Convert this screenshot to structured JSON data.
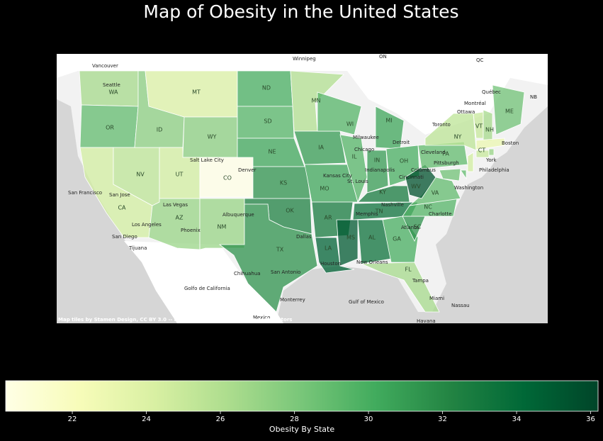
{
  "chart_data": {
    "type": "choropleth",
    "title": "Map of Obesity in the United States",
    "colorbar_label": "Obesity By State",
    "colormap": "YlGn",
    "clim": [
      20.2,
      36.2
    ],
    "cticks": [
      22,
      24,
      26,
      28,
      30,
      32,
      34,
      36
    ],
    "regions": [
      "WA",
      "OR",
      "CA",
      "NV",
      "ID",
      "MT",
      "WY",
      "UT",
      "CO",
      "AZ",
      "NM",
      "ND",
      "SD",
      "NE",
      "KS",
      "OK",
      "TX",
      "MN",
      "IA",
      "MO",
      "AR",
      "LA",
      "WI",
      "IL",
      "MI",
      "IN",
      "OH",
      "KY",
      "TN",
      "MS",
      "AL",
      "GA",
      "FL",
      "SC",
      "NC",
      "VA",
      "WV",
      "PA",
      "NY",
      "VT",
      "NH",
      "ME",
      "CT",
      null,
      null,
      null,
      null,
      null
    ],
    "values": [
      26.5,
      29,
      24.5,
      25.5,
      27.5,
      24,
      27.5,
      24.5,
      20.2,
      27,
      27,
      30,
      29.5,
      30.5,
      31.5,
      32.5,
      31.5,
      26,
      31,
      30.5,
      33,
      34.5,
      29.5,
      29.5,
      30.5,
      31,
      30,
      33,
      33.5,
      35,
      33.5,
      30,
      26.5,
      31.5,
      29.5,
      29,
      35.5,
      29,
      25.5,
      25,
      26.5,
      28.5,
      25,
      23,
      27,
      24.5,
      29,
      28.5
    ],
    "places": [
      "Vancouver",
      "Winnipeg",
      "ON",
      "QC",
      "Québec",
      "Montréal",
      "Ottawa",
      "Toronto",
      "NB",
      "Seattle",
      "Salt Lake City",
      "Denver",
      "San Francisco",
      "San Jose",
      "Los Angeles",
      "Las Vegas",
      "Phoenix",
      "San Diego",
      "Tijuana",
      "Albuquerque",
      "Dallas",
      "San Antonio",
      "Houston",
      "Chihuahua",
      "Monterrey",
      "Mexico",
      "Golfo de California",
      "Gulf of Mexico",
      "Chicago",
      "Milwaukee",
      "Detroit",
      "Cleveland",
      "Indianapolis",
      "Columbus",
      "Cincinnati",
      "Pittsburgh",
      "Kansas City",
      "St. Louis",
      "Nashville",
      "Memphis",
      "Atlanta",
      "Charlotte",
      "New Orleans",
      "Tampa",
      "Miami",
      "Nassau",
      "Havana",
      "Boston",
      "York",
      "Philadelphia",
      "Washington"
    ],
    "attribution": "Map tiles by Stamen Design, CC BY 3.0 -- Map data (C) OpenStreetMap contributors"
  }
}
